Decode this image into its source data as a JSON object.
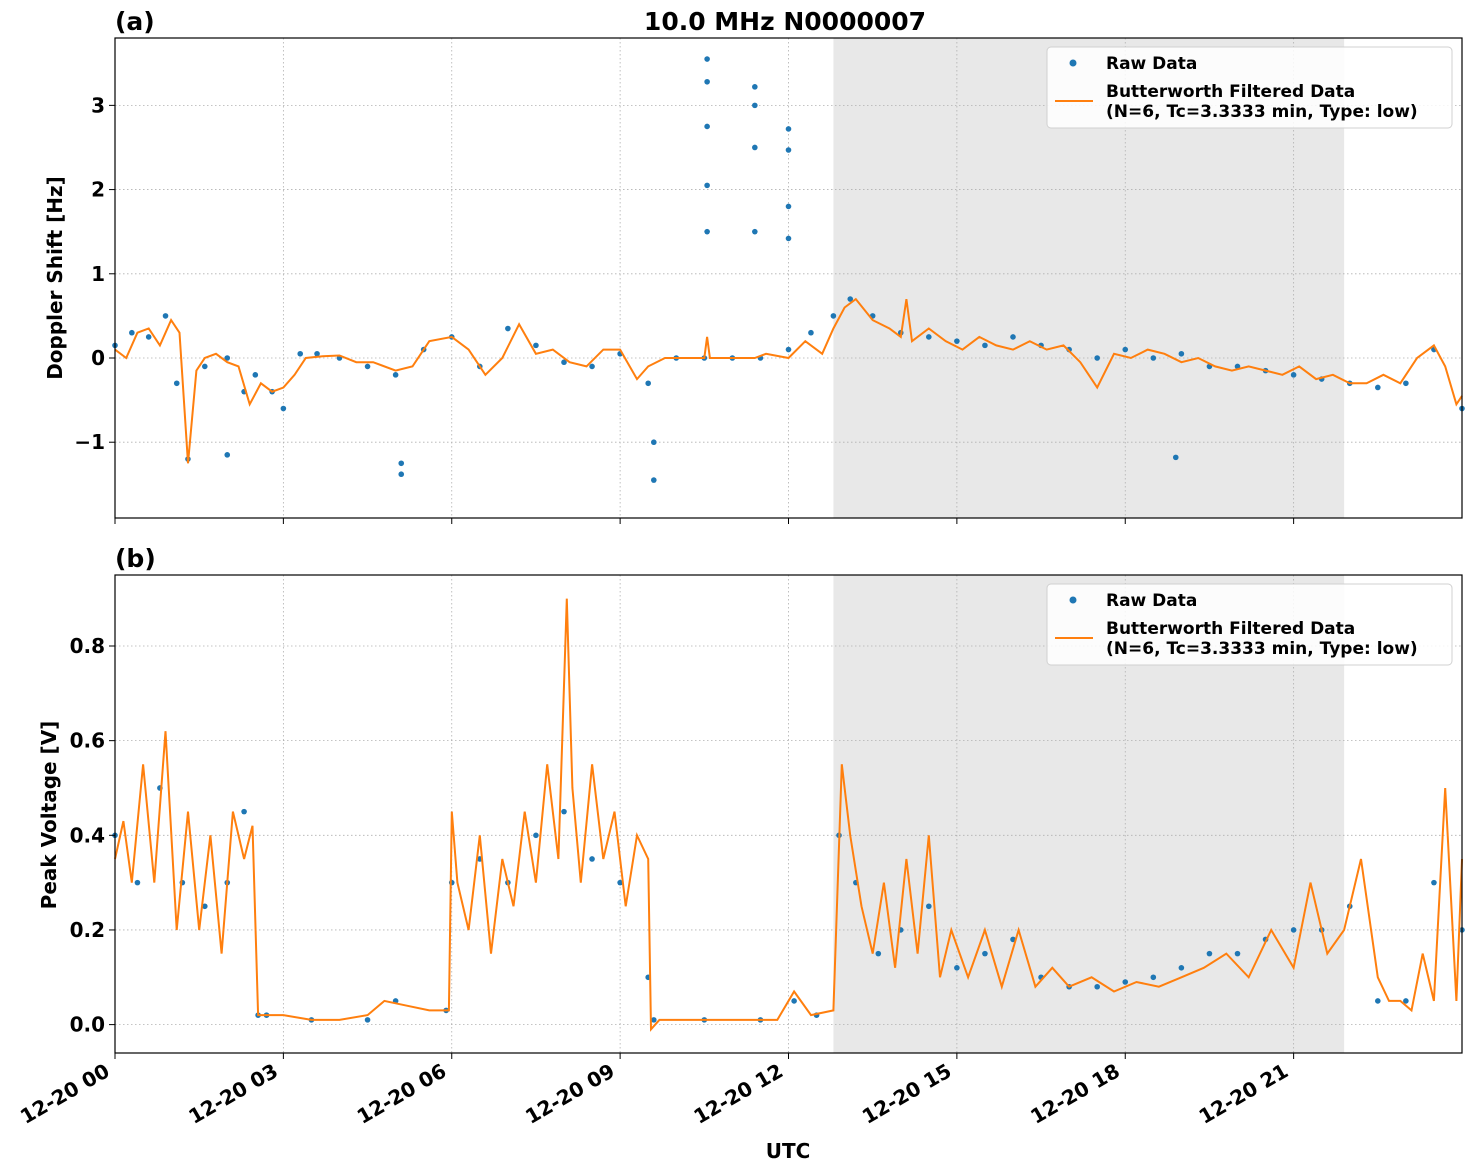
{
  "figure": {
    "title": "10.0 MHz N0000007",
    "xlabel": "UTC"
  },
  "colors": {
    "raw": "#1f77b4",
    "filtered": "#ff7f0e",
    "shade": "#e8e8e8",
    "grid": "#b0b0b0"
  },
  "legend": {
    "raw_label": "Raw Data",
    "filtered_label_line1": "Butterworth Filtered Data",
    "filtered_label_line2": "(N=6, Tc=3.3333 min, Type: low)",
    "placement": "top-right"
  },
  "chart_data": [
    {
      "type": "scatter",
      "panel_label": "(a)",
      "title": "10.0 MHz N0000007",
      "xlabel": "",
      "ylabel": "Doppler Shift [Hz]",
      "xlim_hours": [
        0,
        24
      ],
      "ylim": [
        -1.9,
        3.8
      ],
      "yticks": [
        -1,
        0,
        1,
        2,
        3
      ],
      "ytick_labels": [
        "−1",
        "0",
        "1",
        "2",
        "3"
      ],
      "grid": true,
      "shaded_interval_hours": [
        12.8,
        21.9
      ],
      "series": [
        {
          "name": "Raw Data",
          "kind": "points",
          "x_hours": [
            0.0,
            0.3,
            0.6,
            0.9,
            1.1,
            1.3,
            1.6,
            2.0,
            2.3,
            2.5,
            2.8,
            3.0,
            3.3,
            3.6,
            4.0,
            4.5,
            5.0,
            5.5,
            6.0,
            6.5,
            7.0,
            7.5,
            8.0,
            8.5,
            9.0,
            9.5,
            10.0,
            10.5,
            11.0,
            11.5,
            12.0,
            12.4,
            12.8,
            13.1,
            13.5,
            14.0,
            14.5,
            15.0,
            15.5,
            16.0,
            16.5,
            17.0,
            17.5,
            18.0,
            18.5,
            19.0,
            19.5,
            20.0,
            20.5,
            21.0,
            21.5,
            22.0,
            22.5,
            23.0,
            23.5,
            24.0
          ],
          "y": [
            0.15,
            0.3,
            0.25,
            0.5,
            -0.3,
            -1.2,
            -0.1,
            0.0,
            -0.4,
            -0.2,
            -0.4,
            -0.6,
            0.05,
            0.05,
            0.0,
            -0.1,
            -0.2,
            0.1,
            0.25,
            -0.1,
            0.35,
            0.15,
            -0.05,
            -0.1,
            0.05,
            -0.3,
            0.0,
            0.0,
            0.0,
            0.0,
            0.1,
            0.3,
            0.5,
            0.7,
            0.5,
            0.3,
            0.25,
            0.2,
            0.15,
            0.25,
            0.15,
            0.1,
            0.0,
            0.1,
            0.0,
            0.05,
            -0.1,
            -0.1,
            -0.15,
            -0.2,
            -0.25,
            -0.3,
            -0.35,
            -0.3,
            0.1,
            -0.6
          ],
          "outliers_x_hours": [
            10.55,
            10.55,
            10.55,
            10.55,
            10.55,
            11.4,
            11.4,
            11.4,
            11.4,
            12.0,
            12.0,
            12.0,
            12.0,
            2.0,
            5.1,
            5.1,
            9.6,
            9.6,
            18.9
          ],
          "outliers_y": [
            3.55,
            3.28,
            2.75,
            2.05,
            1.5,
            3.22,
            3.0,
            2.5,
            1.5,
            2.72,
            2.47,
            1.8,
            1.42,
            -1.15,
            -1.25,
            -1.38,
            -1.45,
            -1.0,
            -1.18
          ]
        },
        {
          "name": "Butterworth Filtered Data\n(N=6, Tc=3.3333 min, Type: low)",
          "kind": "line",
          "x_hours": [
            0.0,
            0.2,
            0.4,
            0.6,
            0.8,
            1.0,
            1.15,
            1.3,
            1.45,
            1.6,
            1.8,
            2.0,
            2.2,
            2.4,
            2.6,
            2.8,
            3.0,
            3.2,
            3.4,
            3.7,
            4.0,
            4.3,
            4.6,
            5.0,
            5.3,
            5.6,
            6.0,
            6.3,
            6.6,
            6.9,
            7.2,
            7.5,
            7.8,
            8.1,
            8.4,
            8.7,
            9.0,
            9.3,
            9.5,
            9.8,
            10.1,
            10.5,
            10.55,
            10.6,
            11.0,
            11.4,
            11.6,
            12.0,
            12.3,
            12.6,
            12.8,
            13.0,
            13.2,
            13.5,
            13.8,
            14.0,
            14.1,
            14.2,
            14.5,
            14.8,
            15.1,
            15.4,
            15.7,
            16.0,
            16.3,
            16.6,
            16.9,
            17.2,
            17.5,
            17.8,
            18.1,
            18.4,
            18.7,
            19.0,
            19.3,
            19.6,
            19.9,
            20.2,
            20.5,
            20.8,
            21.1,
            21.4,
            21.7,
            22.0,
            22.3,
            22.6,
            22.9,
            23.2,
            23.5,
            23.7,
            23.9,
            24.0
          ],
          "y": [
            0.1,
            0.0,
            0.3,
            0.35,
            0.15,
            0.45,
            0.3,
            -1.25,
            -0.15,
            0.0,
            0.05,
            -0.05,
            -0.1,
            -0.55,
            -0.3,
            -0.4,
            -0.35,
            -0.2,
            0.0,
            0.02,
            0.03,
            -0.05,
            -0.05,
            -0.15,
            -0.1,
            0.2,
            0.25,
            0.1,
            -0.2,
            0.0,
            0.4,
            0.05,
            0.1,
            -0.05,
            -0.1,
            0.1,
            0.1,
            -0.25,
            -0.1,
            0.0,
            0.0,
            0.0,
            0.25,
            0.0,
            0.0,
            0.0,
            0.05,
            0.0,
            0.2,
            0.05,
            0.35,
            0.6,
            0.7,
            0.45,
            0.35,
            0.25,
            0.7,
            0.2,
            0.35,
            0.2,
            0.1,
            0.25,
            0.15,
            0.1,
            0.2,
            0.1,
            0.15,
            -0.05,
            -0.35,
            0.05,
            0.0,
            0.1,
            0.05,
            -0.05,
            0.0,
            -0.1,
            -0.15,
            -0.1,
            -0.15,
            -0.2,
            -0.1,
            -0.25,
            -0.2,
            -0.3,
            -0.3,
            -0.2,
            -0.3,
            0.0,
            0.15,
            -0.1,
            -0.55,
            -0.45
          ]
        }
      ]
    },
    {
      "type": "scatter",
      "panel_label": "(b)",
      "title": "",
      "xlabel": "UTC",
      "ylabel": "Peak Voltage [V]",
      "xlim_hours": [
        0,
        24
      ],
      "ylim": [
        -0.06,
        0.95
      ],
      "yticks": [
        0.0,
        0.2,
        0.4,
        0.6,
        0.8
      ],
      "ytick_labels": [
        "0.0",
        "0.2",
        "0.4",
        "0.6",
        "0.8"
      ],
      "xticks_hours": [
        0,
        3,
        6,
        9,
        12,
        15,
        18,
        21
      ],
      "xtick_labels": [
        "12-20 00",
        "12-20 03",
        "12-20 06",
        "12-20 09",
        "12-20 12",
        "12-20 15",
        "12-20 18",
        "12-20 21"
      ],
      "grid": true,
      "shaded_interval_hours": [
        12.8,
        21.9
      ],
      "series": [
        {
          "name": "Raw Data",
          "kind": "points",
          "x_hours": [
            0.0,
            0.4,
            0.8,
            1.2,
            1.6,
            2.0,
            2.3,
            2.55,
            2.7,
            3.5,
            4.5,
            5.0,
            5.9,
            6.0,
            6.5,
            7.0,
            7.5,
            8.0,
            8.5,
            9.0,
            9.5,
            9.6,
            10.5,
            11.5,
            12.1,
            12.5,
            12.9,
            13.2,
            13.6,
            14.0,
            14.5,
            15.0,
            15.5,
            16.0,
            16.5,
            17.0,
            17.5,
            18.0,
            18.5,
            19.0,
            19.5,
            20.0,
            20.5,
            21.0,
            21.5,
            22.0,
            22.5,
            23.0,
            23.5,
            24.0
          ],
          "y": [
            0.4,
            0.3,
            0.5,
            0.3,
            0.25,
            0.3,
            0.45,
            0.02,
            0.02,
            0.01,
            0.01,
            0.05,
            0.03,
            0.3,
            0.35,
            0.3,
            0.4,
            0.45,
            0.35,
            0.3,
            0.1,
            0.01,
            0.01,
            0.01,
            0.05,
            0.02,
            0.4,
            0.3,
            0.15,
            0.2,
            0.25,
            0.12,
            0.15,
            0.18,
            0.1,
            0.08,
            0.08,
            0.09,
            0.1,
            0.12,
            0.15,
            0.15,
            0.18,
            0.2,
            0.2,
            0.25,
            0.05,
            0.05,
            0.3,
            0.2
          ]
        },
        {
          "name": "Butterworth Filtered Data\n(N=6, Tc=3.3333 min, Type: low)",
          "kind": "line",
          "x_hours": [
            0.0,
            0.15,
            0.3,
            0.5,
            0.7,
            0.9,
            1.1,
            1.3,
            1.5,
            1.7,
            1.9,
            2.1,
            2.3,
            2.45,
            2.55,
            2.7,
            3.0,
            3.5,
            4.0,
            4.5,
            4.8,
            5.2,
            5.6,
            5.95,
            6.0,
            6.1,
            6.3,
            6.5,
            6.7,
            6.9,
            7.1,
            7.3,
            7.5,
            7.7,
            7.9,
            8.05,
            8.15,
            8.3,
            8.5,
            8.7,
            8.9,
            9.1,
            9.3,
            9.5,
            9.55,
            9.7,
            10.0,
            11.0,
            11.8,
            12.1,
            12.4,
            12.8,
            12.95,
            13.1,
            13.3,
            13.5,
            13.7,
            13.9,
            14.1,
            14.3,
            14.5,
            14.7,
            14.9,
            15.2,
            15.5,
            15.8,
            16.1,
            16.4,
            16.7,
            17.0,
            17.4,
            17.8,
            18.2,
            18.6,
            19.0,
            19.4,
            19.8,
            20.2,
            20.6,
            21.0,
            21.3,
            21.6,
            21.9,
            22.2,
            22.5,
            22.7,
            22.9,
            23.1,
            23.3,
            23.5,
            23.7,
            23.9,
            24.0
          ],
          "y": [
            0.35,
            0.43,
            0.3,
            0.55,
            0.3,
            0.62,
            0.2,
            0.45,
            0.2,
            0.4,
            0.15,
            0.45,
            0.35,
            0.42,
            0.02,
            0.02,
            0.02,
            0.01,
            0.01,
            0.02,
            0.05,
            0.04,
            0.03,
            0.03,
            0.45,
            0.3,
            0.2,
            0.4,
            0.15,
            0.35,
            0.25,
            0.45,
            0.3,
            0.55,
            0.35,
            0.9,
            0.5,
            0.3,
            0.55,
            0.35,
            0.45,
            0.25,
            0.4,
            0.35,
            -0.01,
            0.01,
            0.01,
            0.01,
            0.01,
            0.07,
            0.02,
            0.03,
            0.55,
            0.4,
            0.25,
            0.15,
            0.3,
            0.12,
            0.35,
            0.15,
            0.4,
            0.1,
            0.2,
            0.1,
            0.2,
            0.08,
            0.2,
            0.08,
            0.12,
            0.08,
            0.1,
            0.07,
            0.09,
            0.08,
            0.1,
            0.12,
            0.15,
            0.1,
            0.2,
            0.12,
            0.3,
            0.15,
            0.2,
            0.35,
            0.1,
            0.05,
            0.05,
            0.03,
            0.15,
            0.05,
            0.5,
            0.05,
            0.35
          ]
        }
      ]
    }
  ]
}
